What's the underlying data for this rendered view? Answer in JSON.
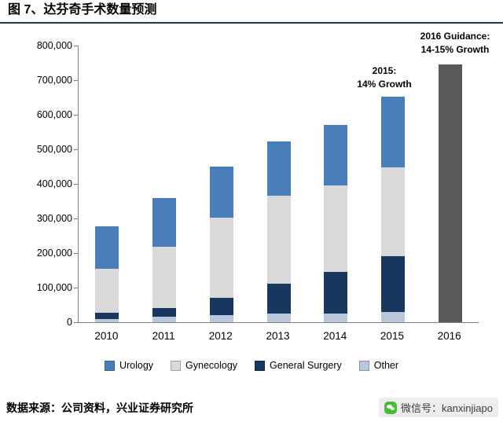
{
  "header": {
    "title": "图 7、达芬奇手术数量预测"
  },
  "footer": {
    "source": "数据来源：公司资料，兴业证券研究所",
    "wechat": "微信号：kanxinjiapo"
  },
  "chart_data": {
    "type": "bar",
    "stacked": true,
    "title": "图 7、达芬奇手术数量预测",
    "categories": [
      "2010",
      "2011",
      "2012",
      "2013",
      "2014",
      "2015",
      "2016"
    ],
    "series": [
      {
        "name": "Other",
        "color": "#b9c7da",
        "values": [
          10000,
          15000,
          20000,
          25000,
          25000,
          30000,
          0
        ]
      },
      {
        "name": "General Surgery",
        "color": "#17375e",
        "values": [
          18000,
          25000,
          50000,
          87000,
          120000,
          160000,
          0
        ]
      },
      {
        "name": "Gynecology",
        "color": "#d9d9d9",
        "values": [
          127000,
          178000,
          233000,
          255000,
          250000,
          258000,
          0
        ]
      },
      {
        "name": "Urology",
        "color": "#4a7ebb",
        "values": [
          123000,
          142000,
          147000,
          156000,
          175000,
          204000,
          0
        ]
      },
      {
        "name": "2016 Guidance",
        "color": "#595959",
        "values": [
          0,
          0,
          0,
          0,
          0,
          0,
          745000
        ]
      }
    ],
    "totals": [
      278000,
      360000,
      450000,
      523000,
      570000,
      652000,
      745000
    ],
    "ylim": [
      0,
      800000
    ],
    "ytick_step": 100000,
    "ytick_labels": [
      "0",
      "100,000",
      "200,000",
      "300,000",
      "400,000",
      "500,000",
      "600,000",
      "700,000",
      "800,000"
    ],
    "grid": false,
    "legend_position": "bottom",
    "legend": [
      {
        "label": "Urology",
        "color": "#4a7ebb"
      },
      {
        "label": "Gynecology",
        "color": "#d9d9d9"
      },
      {
        "label": "General Surgery",
        "color": "#17375e"
      },
      {
        "label": "Other",
        "color": "#b9c7da"
      }
    ],
    "annotations": [
      {
        "line1": "2015:",
        "line2": "14% Growth"
      },
      {
        "line1": "2016 Guidance:",
        "line2": "14-15% Growth"
      }
    ]
  }
}
